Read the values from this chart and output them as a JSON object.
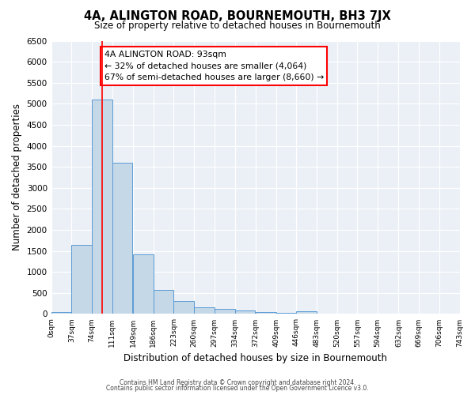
{
  "title": "4A, ALINGTON ROAD, BOURNEMOUTH, BH3 7JX",
  "subtitle": "Size of property relative to detached houses in Bournemouth",
  "xlabel": "Distribution of detached houses by size in Bournemouth",
  "ylabel": "Number of detached properties",
  "bar_values": [
    50,
    1650,
    5100,
    3600,
    1420,
    580,
    300,
    150,
    120,
    90,
    50,
    30,
    60,
    0,
    0,
    0,
    0,
    0,
    0,
    0
  ],
  "bin_starts": [
    0,
    37,
    74,
    111,
    149,
    186,
    223,
    260,
    297,
    334,
    372,
    409,
    446,
    483,
    520,
    557,
    594,
    632,
    669,
    706
  ],
  "bin_width": 37,
  "x_tick_labels": [
    "0sqm",
    "37sqm",
    "74sqm",
    "111sqm",
    "149sqm",
    "186sqm",
    "223sqm",
    "260sqm",
    "297sqm",
    "334sqm",
    "372sqm",
    "409sqm",
    "446sqm",
    "483sqm",
    "520sqm",
    "557sqm",
    "594sqm",
    "632sqm",
    "669sqm",
    "706sqm",
    "743sqm"
  ],
  "ylim": [
    0,
    6500
  ],
  "xlim": [
    0,
    743
  ],
  "yticks": [
    0,
    500,
    1000,
    1500,
    2000,
    2500,
    3000,
    3500,
    4000,
    4500,
    5000,
    5500,
    6000,
    6500
  ],
  "bar_color": "#c5d8e8",
  "bar_edge_color": "#5b9bd5",
  "bg_color": "#eaf0f6",
  "grid_color": "#ffffff",
  "red_line_x": 93,
  "annotation_title": "4A ALINGTON ROAD: 93sqm",
  "annotation_line1": "← 32% of detached houses are smaller (4,064)",
  "annotation_line2": "67% of semi-detached houses are larger (8,660) →",
  "footer1": "Contains HM Land Registry data © Crown copyright and database right 2024.",
  "footer2": "Contains public sector information licensed under the Open Government Licence v3.0."
}
